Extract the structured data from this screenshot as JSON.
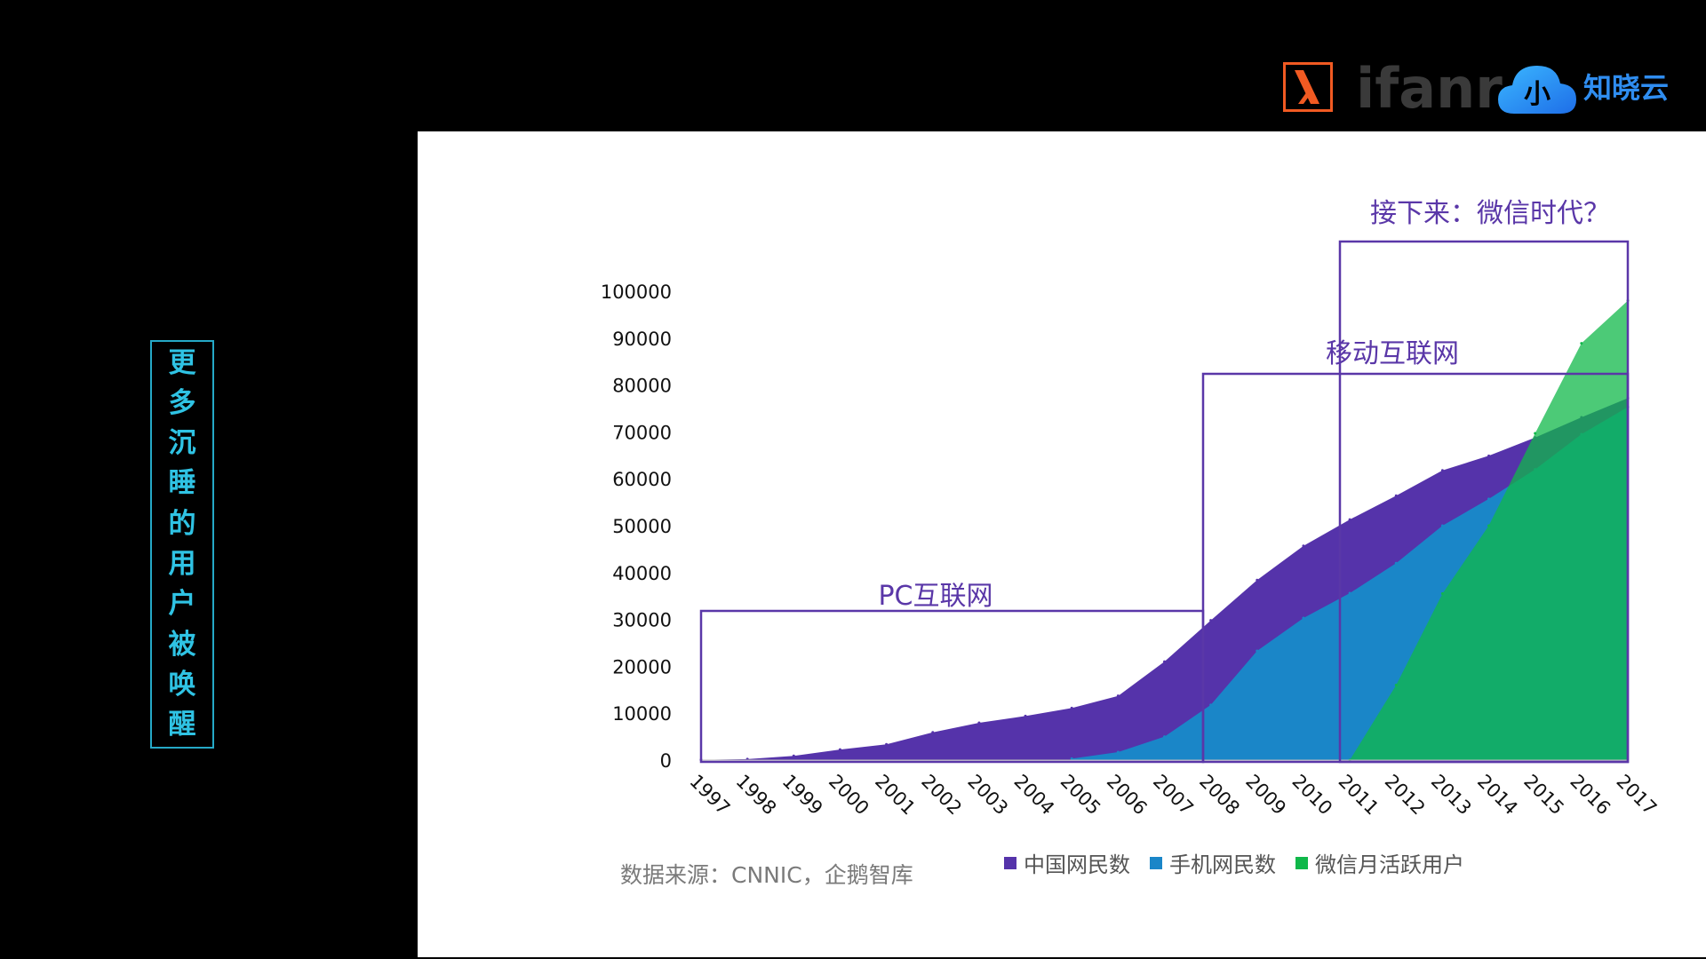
{
  "sidebar": {
    "title": "更多沉睡的用户被唤醒"
  },
  "logos": {
    "ifanr": "ifanr",
    "zhixiaoyun": "知晓云",
    "cloud_glyph": "小"
  },
  "annotations": {
    "pc": "PC互联网",
    "mobile": "移动互联网",
    "wechat": "接下来：微信时代？"
  },
  "source": "数据来源：CNNIC，企鹅智库",
  "colors": {
    "china_netizens": "#5533aa",
    "mobile_netizens": "#1a86c8",
    "wechat_mau": "#10b84a",
    "annotation": "#5a37a8",
    "sidebar": "#2fc3e4"
  },
  "chart_data": {
    "type": "area",
    "x": [
      "1997",
      "1998",
      "1999",
      "2000",
      "2001",
      "2002",
      "2003",
      "2004",
      "2005",
      "2006",
      "2007",
      "2008",
      "2009",
      "2010",
      "2011",
      "2012",
      "2013",
      "2014",
      "2015",
      "2016",
      "2017"
    ],
    "ylim": [
      0,
      100000
    ],
    "yticks": [
      0,
      10000,
      20000,
      30000,
      40000,
      50000,
      60000,
      70000,
      80000,
      90000,
      100000
    ],
    "series": [
      {
        "name": "中国网民数",
        "color": "#5533aa",
        "values": [
          62,
          210,
          890,
          2250,
          3370,
          5910,
          7950,
          9400,
          11100,
          13700,
          21000,
          29800,
          38400,
          45700,
          51300,
          56400,
          61800,
          64900,
          68800,
          73100,
          77200
        ]
      },
      {
        "name": "手机网民数",
        "color": "#1a86c8",
        "values": [
          null,
          null,
          null,
          null,
          null,
          null,
          null,
          null,
          300,
          1700,
          5000,
          11760,
          23300,
          30300,
          35600,
          42000,
          50000,
          55700,
          62000,
          69500,
          75300
        ]
      },
      {
        "name": "微信月活跃用户",
        "color": "#10b84a",
        "values": [
          null,
          null,
          null,
          null,
          null,
          null,
          null,
          null,
          null,
          null,
          null,
          null,
          null,
          null,
          0,
          16000,
          35500,
          50000,
          69700,
          88900,
          98000
        ]
      }
    ],
    "grid": false,
    "legend": "bottom"
  }
}
